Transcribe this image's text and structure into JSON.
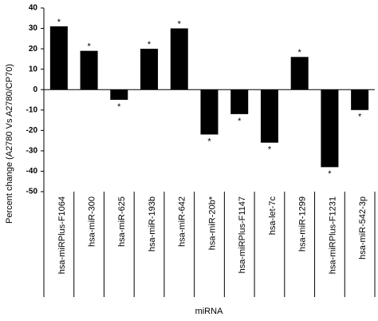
{
  "chart_data": {
    "type": "bar",
    "y_axis_label": "Percent change (A2780 Vs A2780/CP70)",
    "x_axis_label": "miRNA",
    "categories": [
      "hsa-miRPlus-F1064",
      "hsa-miR-300",
      "hsa-miR-625",
      "hsa-miR-193b",
      "hsa-miR-642",
      "hsa-miR-20b*",
      "hsa-miRPlus-F1147",
      "hsa-let-7c",
      "hsa-miR-1299",
      "hsa-miRPlus-F1231",
      "hsa-miR-542-3p"
    ],
    "values": [
      31,
      19,
      -5,
      20,
      30,
      -22,
      -12,
      -26,
      16,
      -38,
      -10
    ],
    "significance": [
      "*",
      "*",
      "*",
      "*",
      "*",
      "*",
      "*",
      "*",
      "*",
      "*",
      "*"
    ],
    "color": "#000000",
    "ylim": [
      -50,
      40
    ],
    "yticks": [
      -50,
      -40,
      -30,
      -20,
      -10,
      0,
      10,
      20,
      30,
      40
    ],
    "grid": false
  }
}
